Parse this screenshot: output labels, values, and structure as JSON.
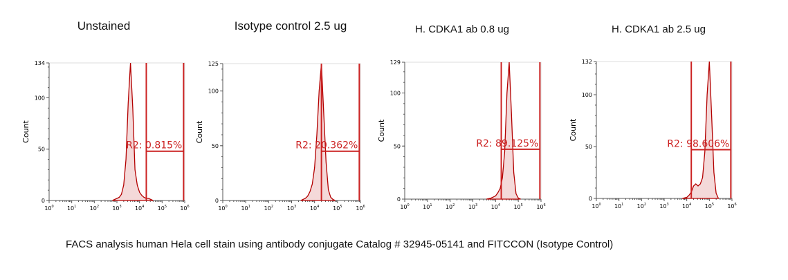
{
  "caption": "FACS analysis human Hela cell stain using antibody conjugate Catalog # 32945-05141 and FITCCON (Isotype Control)",
  "colors": {
    "histogram": "#b30000",
    "gate": "#cc2222",
    "axis": "#555555"
  },
  "chart_data": [
    {
      "type": "area",
      "title": "Unstained",
      "ylabel": "Count",
      "xscale": "log",
      "xlim": [
        0,
        6
      ],
      "xticks": [
        "10^0",
        "10^1",
        "10^2",
        "10^3",
        "10^4",
        "10^5",
        "10^6"
      ],
      "ylim": [
        0,
        134
      ],
      "yticks": [
        0,
        50,
        100,
        134
      ],
      "x_log10": [
        2.8,
        2.9,
        3.0,
        3.1,
        3.2,
        3.3,
        3.4,
        3.5,
        3.6,
        3.7,
        3.8,
        3.9,
        4.0,
        4.1,
        4.2,
        4.3,
        4.4,
        4.5,
        4.6
      ],
      "counts": [
        0,
        1,
        2,
        3,
        6,
        15,
        40,
        95,
        134,
        90,
        30,
        15,
        8,
        5,
        3,
        2,
        2,
        1,
        0
      ],
      "gate": {
        "name": "R2",
        "from_log10": 4.3,
        "to_log10": 5.95,
        "level": 48,
        "label": "R2: 0.815%"
      }
    },
    {
      "type": "area",
      "title": "Isotype control 2.5 ug",
      "ylabel": "Count",
      "xscale": "log",
      "xlim": [
        0,
        6
      ],
      "xticks": [
        "10^0",
        "10^1",
        "10^2",
        "10^3",
        "10^4",
        "10^5",
        "10^6"
      ],
      "ylim": [
        0,
        125
      ],
      "yticks": [
        0,
        50,
        100,
        125
      ],
      "x_log10": [
        3.4,
        3.5,
        3.6,
        3.7,
        3.8,
        3.9,
        4.0,
        4.1,
        4.2,
        4.3,
        4.4,
        4.5,
        4.6,
        4.7,
        4.8,
        4.9
      ],
      "counts": [
        0,
        1,
        2,
        4,
        8,
        15,
        30,
        60,
        100,
        125,
        80,
        35,
        10,
        3,
        1,
        0
      ],
      "gate": {
        "name": "R2",
        "from_log10": 4.3,
        "to_log10": 5.95,
        "level": 45,
        "label": "R2: 20.362%"
      }
    },
    {
      "type": "area",
      "title": "H. CDKA1 ab 0.8 ug",
      "ylabel": "Count",
      "xscale": "log",
      "xlim": [
        0,
        6
      ],
      "xticks": [
        "10^0",
        "10^1",
        "10^2",
        "10^3",
        "10^4",
        "10^5",
        "10^6"
      ],
      "ylim": [
        0,
        129
      ],
      "yticks": [
        0,
        50,
        100,
        129
      ],
      "x_log10": [
        3.6,
        3.8,
        4.0,
        4.1,
        4.2,
        4.3,
        4.4,
        4.5,
        4.6,
        4.7,
        4.8,
        4.9,
        5.0,
        5.1
      ],
      "counts": [
        0,
        1,
        3,
        6,
        10,
        20,
        45,
        100,
        129,
        80,
        25,
        5,
        1,
        0
      ],
      "gate": {
        "name": "R2",
        "from_log10": 4.25,
        "to_log10": 5.95,
        "level": 47,
        "label": "R2: 89.125%"
      }
    },
    {
      "type": "area",
      "title": "H. CDKA1 ab 2.5 ug",
      "ylabel": "Count",
      "xscale": "log",
      "xlim": [
        0,
        6
      ],
      "xticks": [
        "10^0",
        "10^1",
        "10^2",
        "10^3",
        "10^4",
        "10^5",
        "10^6"
      ],
      "ylim": [
        0,
        132
      ],
      "yticks": [
        0,
        50,
        100,
        132
      ],
      "x_log10": [
        3.8,
        4.0,
        4.1,
        4.2,
        4.3,
        4.4,
        4.5,
        4.6,
        4.7,
        4.8,
        4.9,
        5.0,
        5.1,
        5.2,
        5.3,
        5.4
      ],
      "counts": [
        0,
        1,
        3,
        6,
        12,
        14,
        12,
        14,
        20,
        45,
        100,
        132,
        80,
        25,
        5,
        0
      ],
      "gate": {
        "name": "R2",
        "from_log10": 4.2,
        "to_log10": 5.95,
        "level": 47,
        "label": "R2: 98.606%"
      }
    }
  ]
}
